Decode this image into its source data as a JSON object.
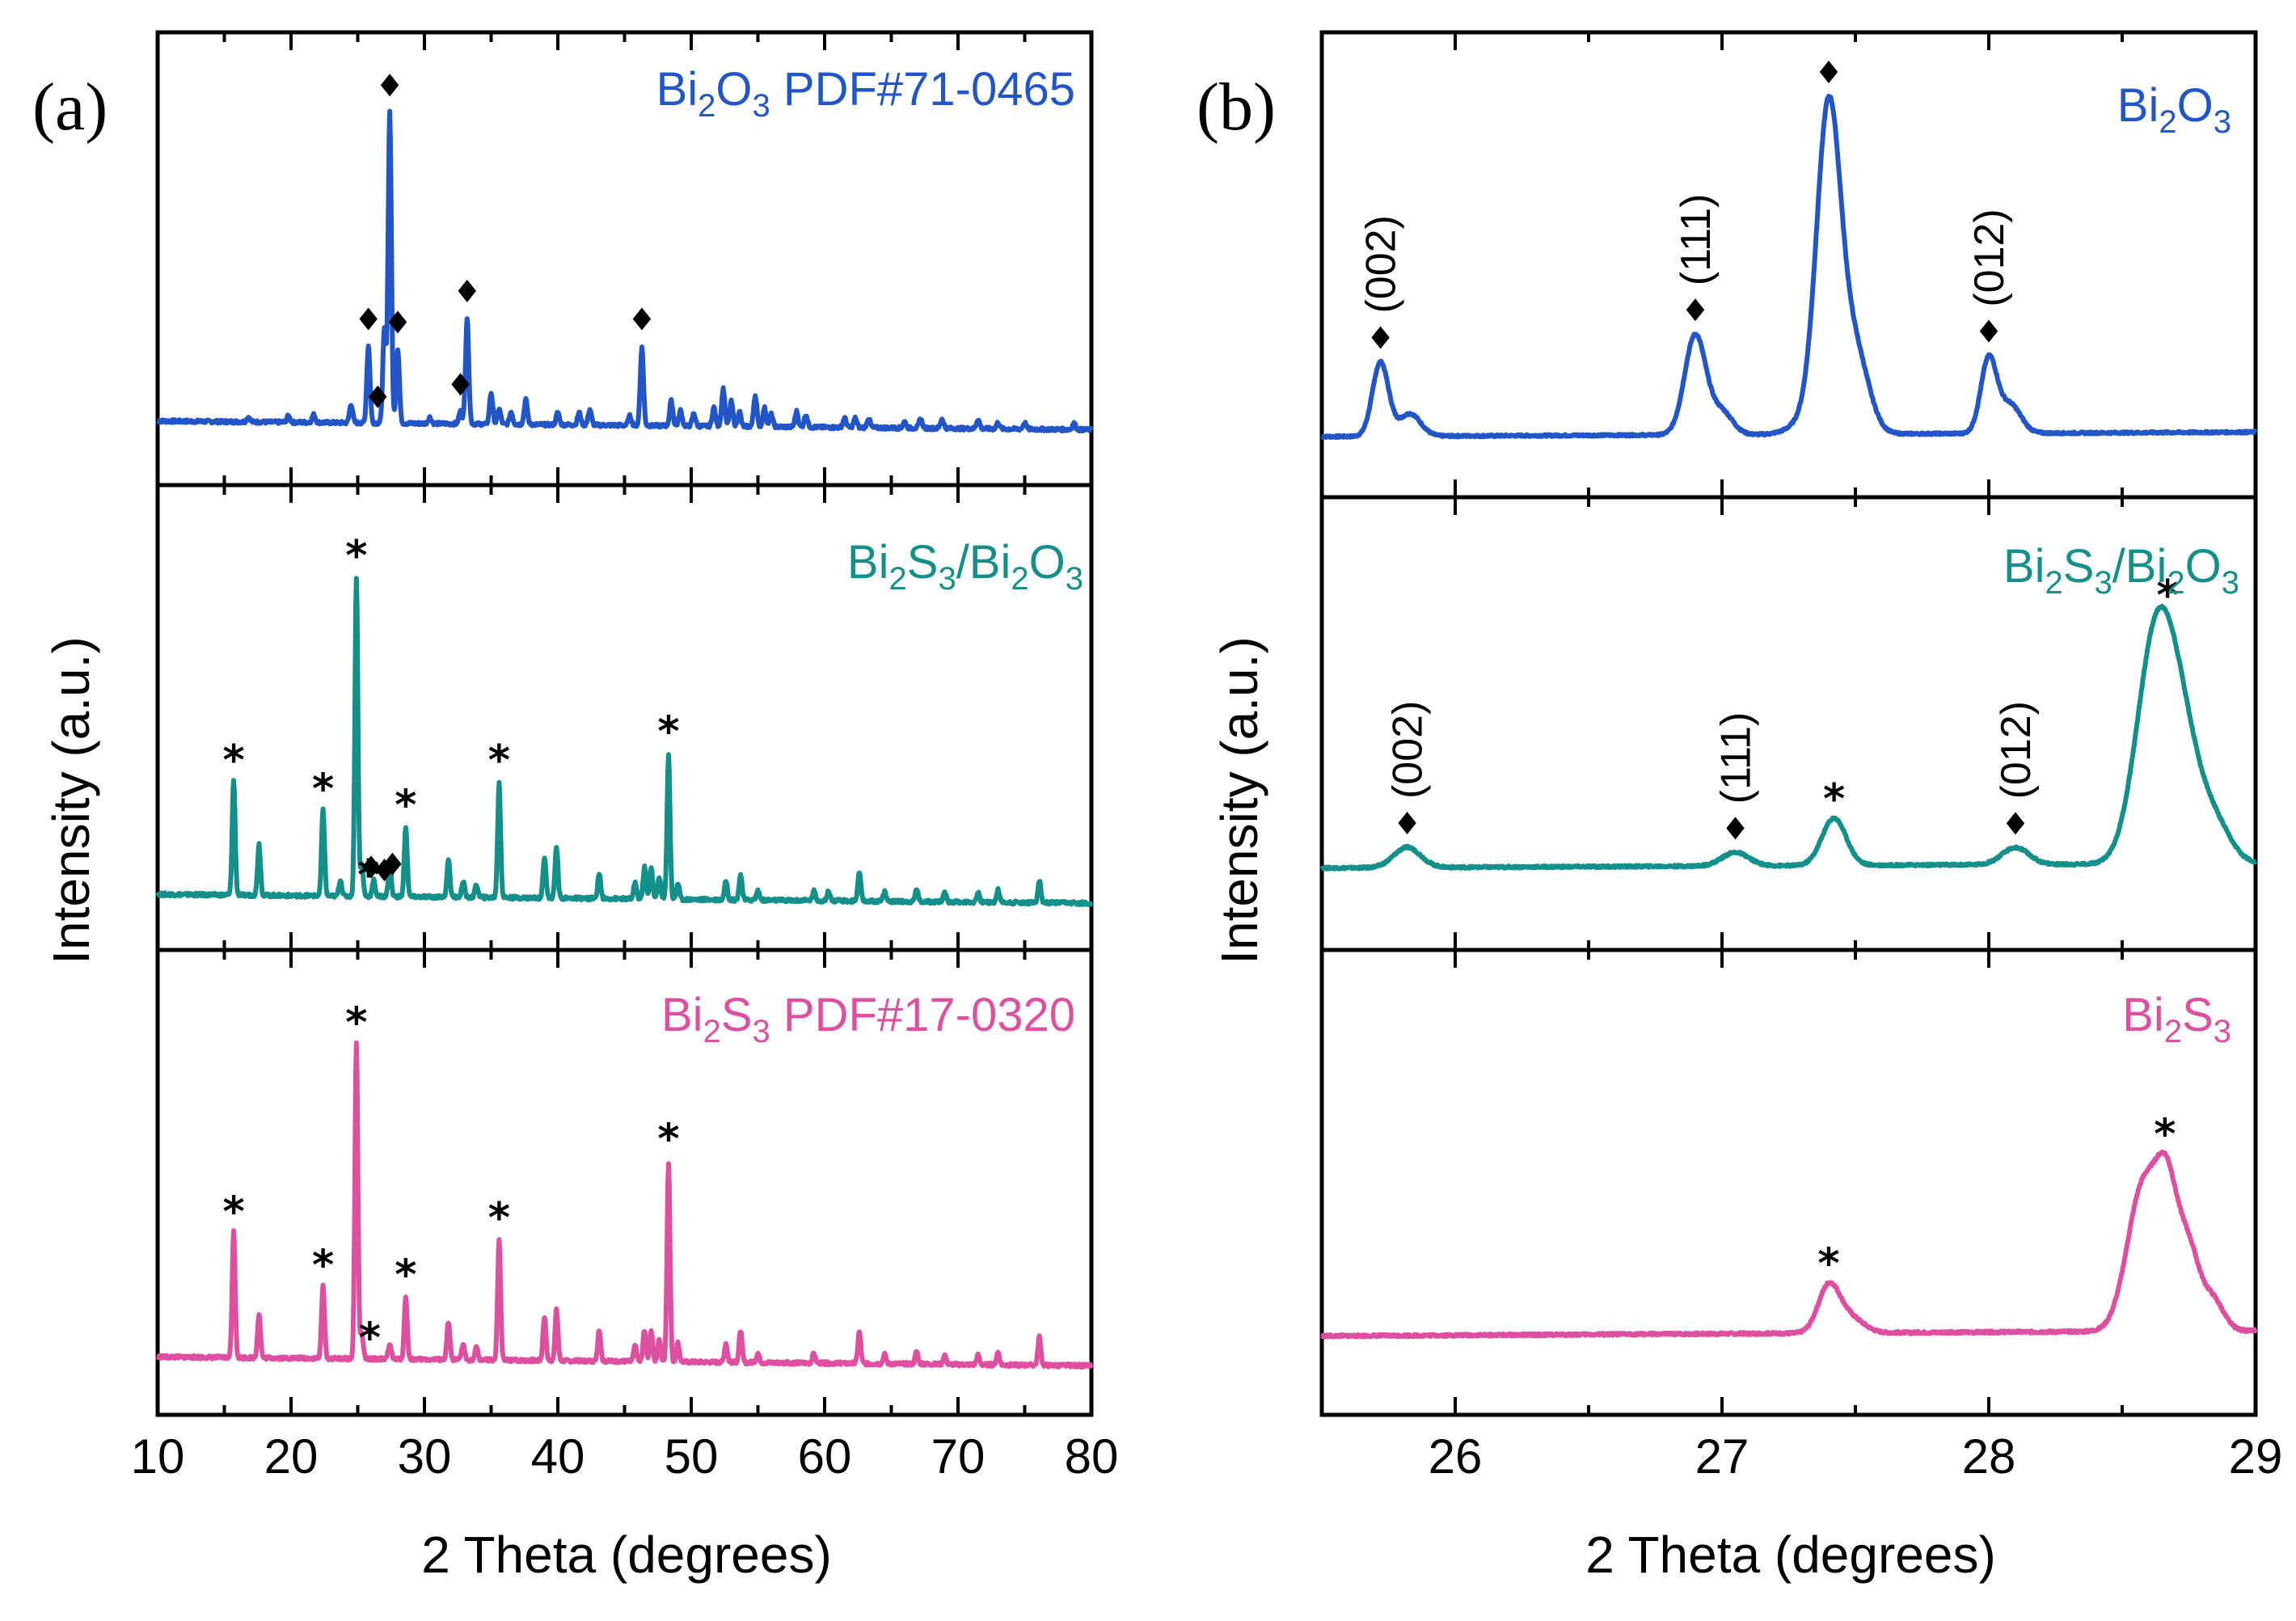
{
  "figure": {
    "panel_labels": [
      "(a)",
      "(b)"
    ],
    "y_axis_title": "Intensity (a.u.)",
    "x_axis_title": "2 Theta (degrees)"
  },
  "colors": {
    "bi2o3": "#2255c8",
    "composite": "#13908a",
    "bi2s3": "#de4fa0",
    "axis": "#000000"
  },
  "legend_text": {
    "a_top": [
      "Bi",
      "2",
      "O",
      "3",
      " PDF#71-0465"
    ],
    "a_mid": [
      "Bi",
      "2",
      "S",
      "3",
      "/Bi",
      "2",
      "O",
      "3",
      ""
    ],
    "a_bot": [
      "Bi",
      "2",
      "S",
      "3",
      " PDF#17-0320"
    ],
    "b_top": [
      "Bi",
      "2",
      "O",
      "3",
      ""
    ],
    "b_mid": [
      "Bi",
      "2",
      "S",
      "3",
      "/Bi",
      "2",
      "O",
      "3",
      ""
    ],
    "b_bot": [
      "Bi",
      "2",
      "S",
      "3",
      ""
    ]
  },
  "chart_data": [
    {
      "type": "line",
      "panel": "(a)",
      "xlabel": "2 Theta (degrees)",
      "ylabel": "Intensity (a.u.)",
      "xlim": [
        10,
        80
      ],
      "x_ticks": [
        10,
        20,
        30,
        40,
        50,
        60,
        70,
        80
      ],
      "series": [
        {
          "name": "Bi2O3 PDF#71-0465",
          "color": "#2255c8",
          "baseline": 0.05,
          "peaks": [
            [
              16.8,
              0.015
            ],
            [
              19.8,
              0.02
            ],
            [
              21.7,
              0.025
            ],
            [
              24.5,
              0.06
            ],
            [
              25.8,
              0.25
            ],
            [
              27.0,
              0.3
            ],
            [
              27.4,
              1.0
            ],
            [
              28.0,
              0.24
            ],
            [
              30.4,
              0.02
            ],
            [
              32.7,
              0.04
            ],
            [
              33.2,
              0.34
            ],
            [
              35.0,
              0.1
            ],
            [
              35.6,
              0.05
            ],
            [
              36.5,
              0.04
            ],
            [
              37.6,
              0.08
            ],
            [
              40.0,
              0.04
            ],
            [
              41.6,
              0.04
            ],
            [
              42.4,
              0.05
            ],
            [
              45.4,
              0.03
            ],
            [
              46.3,
              0.25
            ],
            [
              48.5,
              0.08
            ],
            [
              49.2,
              0.05
            ],
            [
              50.2,
              0.04
            ],
            [
              51.7,
              0.06
            ],
            [
              52.4,
              0.12
            ],
            [
              53.0,
              0.08
            ],
            [
              53.6,
              0.05
            ],
            [
              54.8,
              0.1
            ],
            [
              55.5,
              0.06
            ],
            [
              56.0,
              0.04
            ],
            [
              57.9,
              0.05
            ],
            [
              58.6,
              0.04
            ],
            [
              61.5,
              0.03
            ],
            [
              62.3,
              0.03
            ],
            [
              63.3,
              0.03
            ],
            [
              66.0,
              0.02
            ],
            [
              67.2,
              0.03
            ],
            [
              68.8,
              0.03
            ],
            [
              71.5,
              0.03
            ],
            [
              73.0,
              0.02
            ],
            [
              75.0,
              0.02
            ],
            [
              78.7,
              0.02
            ]
          ],
          "markers": [
            {
              "x": 27.4,
              "symbol": "diamond"
            },
            {
              "x": 25.8,
              "symbol": "diamond"
            },
            {
              "x": 26.5,
              "symbol": "diamond"
            },
            {
              "x": 28.0,
              "symbol": "diamond"
            },
            {
              "x": 32.7,
              "symbol": "diamond"
            },
            {
              "x": 33.2,
              "symbol": "diamond"
            },
            {
              "x": 46.3,
              "symbol": "diamond"
            }
          ]
        },
        {
          "name": "Bi2S3/Bi2O3",
          "color": "#13908a",
          "baseline": 0.03,
          "peaks": [
            [
              15.7,
              0.36
            ],
            [
              17.6,
              0.16
            ],
            [
              22.4,
              0.27
            ],
            [
              23.7,
              0.05
            ],
            [
              24.9,
              1.0
            ],
            [
              25.3,
              0.1
            ],
            [
              26.2,
              0.05
            ],
            [
              27.4,
              0.1
            ],
            [
              28.6,
              0.22
            ],
            [
              31.8,
              0.12
            ],
            [
              32.9,
              0.05
            ],
            [
              33.9,
              0.04
            ],
            [
              35.6,
              0.36
            ],
            [
              39.0,
              0.13
            ],
            [
              39.9,
              0.16
            ],
            [
              43.1,
              0.08
            ],
            [
              45.8,
              0.05
            ],
            [
              46.5,
              0.1
            ],
            [
              47.0,
              0.1
            ],
            [
              47.6,
              0.07
            ],
            [
              48.3,
              0.45
            ],
            [
              49.0,
              0.05
            ],
            [
              52.6,
              0.06
            ],
            [
              53.7,
              0.08
            ],
            [
              55.0,
              0.03
            ],
            [
              59.2,
              0.03
            ],
            [
              60.3,
              0.03
            ],
            [
              62.6,
              0.09
            ],
            [
              64.5,
              0.03
            ],
            [
              66.9,
              0.04
            ],
            [
              69.0,
              0.03
            ],
            [
              71.5,
              0.03
            ],
            [
              73.0,
              0.04
            ],
            [
              76.1,
              0.07
            ]
          ],
          "markers": [
            {
              "x": 15.7,
              "symbol": "star"
            },
            {
              "x": 22.4,
              "symbol": "star"
            },
            {
              "x": 24.9,
              "symbol": "star"
            },
            {
              "x": 25.8,
              "symbol": "star"
            },
            {
              "x": 28.6,
              "symbol": "star"
            },
            {
              "x": 35.6,
              "symbol": "star"
            },
            {
              "x": 48.3,
              "symbol": "star"
            },
            {
              "x": 26.0,
              "symbol": "diamond"
            },
            {
              "x": 27.0,
              "symbol": "diamond"
            },
            {
              "x": 27.6,
              "symbol": "diamond"
            }
          ]
        },
        {
          "name": "Bi2S3 PDF#17-0320",
          "color": "#de4fa0",
          "baseline": 0.03,
          "peaks": [
            [
              15.7,
              0.4
            ],
            [
              17.6,
              0.14
            ],
            [
              22.4,
              0.23
            ],
            [
              24.9,
              1.0
            ],
            [
              25.3,
              0.08
            ],
            [
              27.4,
              0.05
            ],
            [
              28.6,
              0.2
            ],
            [
              31.8,
              0.12
            ],
            [
              32.9,
              0.05
            ],
            [
              33.9,
              0.04
            ],
            [
              35.6,
              0.38
            ],
            [
              39.0,
              0.14
            ],
            [
              39.9,
              0.16
            ],
            [
              43.1,
              0.1
            ],
            [
              45.8,
              0.05
            ],
            [
              46.5,
              0.1
            ],
            [
              47.0,
              0.1
            ],
            [
              47.6,
              0.07
            ],
            [
              48.3,
              0.63
            ],
            [
              49.0,
              0.06
            ],
            [
              52.6,
              0.06
            ],
            [
              53.7,
              0.1
            ],
            [
              55.0,
              0.03
            ],
            [
              59.2,
              0.03
            ],
            [
              62.6,
              0.1
            ],
            [
              64.5,
              0.03
            ],
            [
              66.9,
              0.04
            ],
            [
              69.0,
              0.03
            ],
            [
              71.5,
              0.03
            ],
            [
              73.0,
              0.04
            ],
            [
              76.1,
              0.09
            ]
          ],
          "markers": [
            {
              "x": 15.7,
              "symbol": "star"
            },
            {
              "x": 22.4,
              "symbol": "star"
            },
            {
              "x": 24.9,
              "symbol": "star"
            },
            {
              "x": 25.9,
              "symbol": "star"
            },
            {
              "x": 28.6,
              "symbol": "star"
            },
            {
              "x": 35.6,
              "symbol": "star"
            },
            {
              "x": 48.3,
              "symbol": "star"
            }
          ]
        }
      ]
    },
    {
      "type": "line",
      "panel": "(b)",
      "xlabel": "2 Theta (degrees)",
      "ylabel": "Intensity (a.u.)",
      "xlim": [
        25.5,
        29
      ],
      "x_ticks": [
        26,
        27,
        28,
        29
      ],
      "series": [
        {
          "name": "Bi2O3",
          "color": "#2255c8",
          "baseline": 0.02,
          "peaks": [
            [
              25.72,
              0.23,
              0.03
            ],
            [
              25.83,
              0.07,
              0.04
            ],
            [
              26.9,
              0.31,
              0.04
            ],
            [
              27.0,
              0.07,
              0.04
            ],
            [
              27.32,
              0.04,
              0.06
            ],
            [
              27.4,
              1.0,
              0.045
            ],
            [
              27.5,
              0.25,
              0.05
            ],
            [
              28.0,
              0.23,
              0.03
            ],
            [
              28.08,
              0.09,
              0.04
            ]
          ],
          "markers": [
            {
              "x": 25.72,
              "symbol": "diamond",
              "hkl": "(002)"
            },
            {
              "x": 26.9,
              "symbol": "diamond",
              "hkl": "(111)"
            },
            {
              "x": 27.4,
              "symbol": "diamond"
            },
            {
              "x": 28.0,
              "symbol": "diamond",
              "hkl": "(012)"
            }
          ]
        },
        {
          "name": "Bi2S3/Bi2O3",
          "color": "#13908a",
          "baseline": 0.02,
          "peaks": [
            [
              25.82,
              0.06,
              0.05
            ],
            [
              27.05,
              0.04,
              0.05
            ],
            [
              27.42,
              0.14,
              0.045
            ],
            [
              28.1,
              0.05,
              0.05
            ],
            [
              28.62,
              0.6,
              0.07
            ],
            [
              28.72,
              0.35,
              0.07
            ],
            [
              28.85,
              0.1,
              0.06
            ]
          ],
          "markers": [
            {
              "x": 25.82,
              "symbol": "diamond",
              "hkl": "(002)"
            },
            {
              "x": 27.05,
              "symbol": "diamond",
              "hkl": "(111)"
            },
            {
              "x": 27.42,
              "symbol": "star"
            },
            {
              "x": 28.1,
              "symbol": "diamond",
              "hkl": "(012)"
            },
            {
              "x": 28.67,
              "symbol": "star"
            }
          ]
        },
        {
          "name": "Bi2S3",
          "color": "#de4fa0",
          "baseline": 0.02,
          "peaks": [
            [
              27.4,
              0.12,
              0.04
            ],
            [
              27.48,
              0.04,
              0.05
            ],
            [
              28.58,
              0.38,
              0.06
            ],
            [
              28.67,
              0.3,
              0.04
            ],
            [
              28.75,
              0.2,
              0.04
            ],
            [
              28.84,
              0.08,
              0.04
            ]
          ],
          "markers": [
            {
              "x": 27.4,
              "symbol": "star"
            },
            {
              "x": 28.66,
              "symbol": "star"
            }
          ]
        }
      ]
    }
  ]
}
